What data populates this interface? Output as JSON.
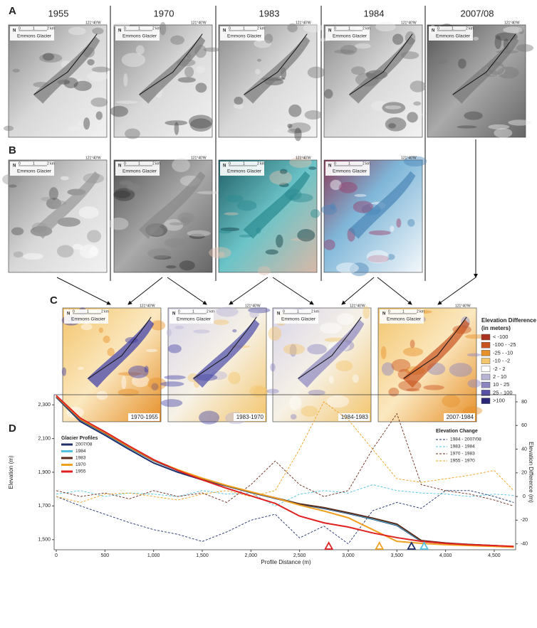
{
  "panel_labels": [
    "A",
    "B",
    "C",
    "D"
  ],
  "years": [
    "1955",
    "1970",
    "1983",
    "1984",
    "2007/08"
  ],
  "map_text": {
    "north": "N",
    "scale": [
      "0",
      "1",
      "2 km"
    ],
    "longitude": "121°40'W",
    "glacier": "Emmons Glacier"
  },
  "difference_maps": [
    "1970-1955",
    "1983-1970",
    "1984-1983",
    "2007-1984"
  ],
  "difference_legend": {
    "title": "Elevation Difference",
    "subtitle": "(in meters)",
    "classes": [
      {
        "label": "< -100",
        "color": "#a8321e"
      },
      {
        "label": "-100 - -25",
        "color": "#c9531e"
      },
      {
        "label": "-25 - -10",
        "color": "#e6902a"
      },
      {
        "label": "-10 - -2",
        "color": "#f3c56d"
      },
      {
        "label": "-2 - 2",
        "color": "#ffffff"
      },
      {
        "label": "2 - 10",
        "color": "#b8b4d6"
      },
      {
        "label": "10 - 25",
        "color": "#8b86c0"
      },
      {
        "label": "25 - 100",
        "color": "#5650a8"
      },
      {
        "label": ">100",
        "color": "#2a2678"
      }
    ]
  },
  "chart_data": {
    "type": "line",
    "xlabel": "Profile Distance (m)",
    "ylabel": "Elevation (m)",
    "y2label": "Elevation Difference (m)",
    "profile_legend_title": "Glacier Profiles",
    "change_legend_title": "Elevation Change",
    "x": [
      0,
      250,
      500,
      750,
      1000,
      1250,
      1500,
      1750,
      2000,
      2250,
      2500,
      2750,
      3000,
      3250,
      3500,
      3750,
      4000,
      4250,
      4500,
      4700
    ],
    "xlim": [
      0,
      4720
    ],
    "xticks": [
      0,
      500,
      {
        "value": 1000,
        "label": "1,000"
      },
      {
        "value": 1500,
        "label": "1,500"
      },
      {
        "value": 2000,
        "label": "2,000"
      },
      {
        "value": 2500,
        "label": "2,500"
      },
      {
        "value": 3000,
        "label": "3,000"
      },
      {
        "value": 3500,
        "label": "3,500"
      },
      {
        "value": 4000,
        "label": "4,000"
      },
      {
        "value": 4500,
        "label": "4,500"
      }
    ],
    "ylim": [
      1440,
      2360
    ],
    "yticks": [
      {
        "value": 1500,
        "label": "1,500"
      },
      {
        "value": 1700,
        "label": "1,700"
      },
      {
        "value": 1900,
        "label": "1,900"
      },
      {
        "value": 2100,
        "label": "2,100"
      },
      {
        "value": 2300,
        "label": "2,300"
      }
    ],
    "y2lim": [
      -45,
      86
    ],
    "y2ticks": [
      -40,
      -20,
      0,
      20,
      40,
      60,
      80
    ],
    "series": [
      {
        "name": "2007/08",
        "color": "#1f2f6b",
        "values": [
          2345,
          2200,
          2120,
          2035,
          1955,
          1900,
          1855,
          1818,
          1780,
          1745,
          1710,
          1685,
          1655,
          1622,
          1585,
          1490,
          1478,
          1470,
          1464,
          1457
        ]
      },
      {
        "name": "1984",
        "color": "#4fc3e0",
        "values": [
          2350,
          2210,
          2130,
          2045,
          1968,
          1910,
          1860,
          1820,
          1782,
          1748,
          1712,
          1688,
          1658,
          1624,
          1588,
          1492,
          1480,
          1471,
          1465,
          1458
        ]
      },
      {
        "name": "1983",
        "color": "#5a2a1a",
        "values": [
          2350,
          2212,
          2132,
          2048,
          1970,
          1912,
          1862,
          1820,
          1782,
          1748,
          1712,
          1690,
          1660,
          1628,
          1592,
          1495,
          1480,
          1471,
          1465,
          1458
        ]
      },
      {
        "name": "1970",
        "color": "#f0a020",
        "values": [
          2352,
          2215,
          2135,
          2050,
          1972,
          1915,
          1865,
          1822,
          1784,
          1748,
          1705,
          1670,
          1630,
          1560,
          1490,
          1478,
          1470,
          1465,
          1460,
          1455
        ]
      },
      {
        "name": "1955",
        "color": "#e02020",
        "values": [
          2355,
          2220,
          2140,
          2055,
          1975,
          1910,
          1855,
          1805,
          1760,
          1715,
          1640,
          1600,
          1575,
          1540,
          1512,
          1490,
          1478,
          1470,
          1465,
          1460
        ]
      },
      {
        "name": "1984 - 2007/08",
        "color": "#1f2f6b",
        "axis": "y2",
        "dashed": true,
        "values": [
          0,
          -8,
          -15,
          -22,
          -28,
          -32,
          -38,
          -30,
          -20,
          -15,
          -35,
          -25,
          -40,
          -12,
          -5,
          -10,
          5,
          5,
          0,
          -5
        ]
      },
      {
        "name": "1983 - 1984",
        "color": "#4fc3e0",
        "axis": "y2",
        "dashed": true,
        "values": [
          2,
          5,
          0,
          3,
          2,
          0,
          5,
          2,
          3,
          -8,
          2,
          5,
          3,
          10,
          5,
          3,
          2,
          0,
          2,
          1
        ]
      },
      {
        "name": "1970 - 1983",
        "color": "#6b2a1a",
        "axis": "y2",
        "dashed": true,
        "values": [
          5,
          0,
          3,
          -2,
          5,
          0,
          3,
          -5,
          10,
          30,
          10,
          0,
          5,
          40,
          70,
          10,
          5,
          2,
          -3,
          -8
        ]
      },
      {
        "name": "1955 - 1970",
        "color": "#f0a020",
        "axis": "y2",
        "dashed": true,
        "values": [
          0,
          -5,
          2,
          3,
          0,
          -3,
          2,
          5,
          0,
          5,
          40,
          80,
          65,
          40,
          15,
          12,
          15,
          18,
          22,
          5
        ]
      }
    ],
    "termini": [
      {
        "x": 2800,
        "color": "#e02020"
      },
      {
        "x": 3320,
        "color": "#f0a020"
      },
      {
        "x": 3650,
        "color": "#1f2f6b"
      },
      {
        "x": 3780,
        "color": "#4fc3e0"
      }
    ]
  }
}
